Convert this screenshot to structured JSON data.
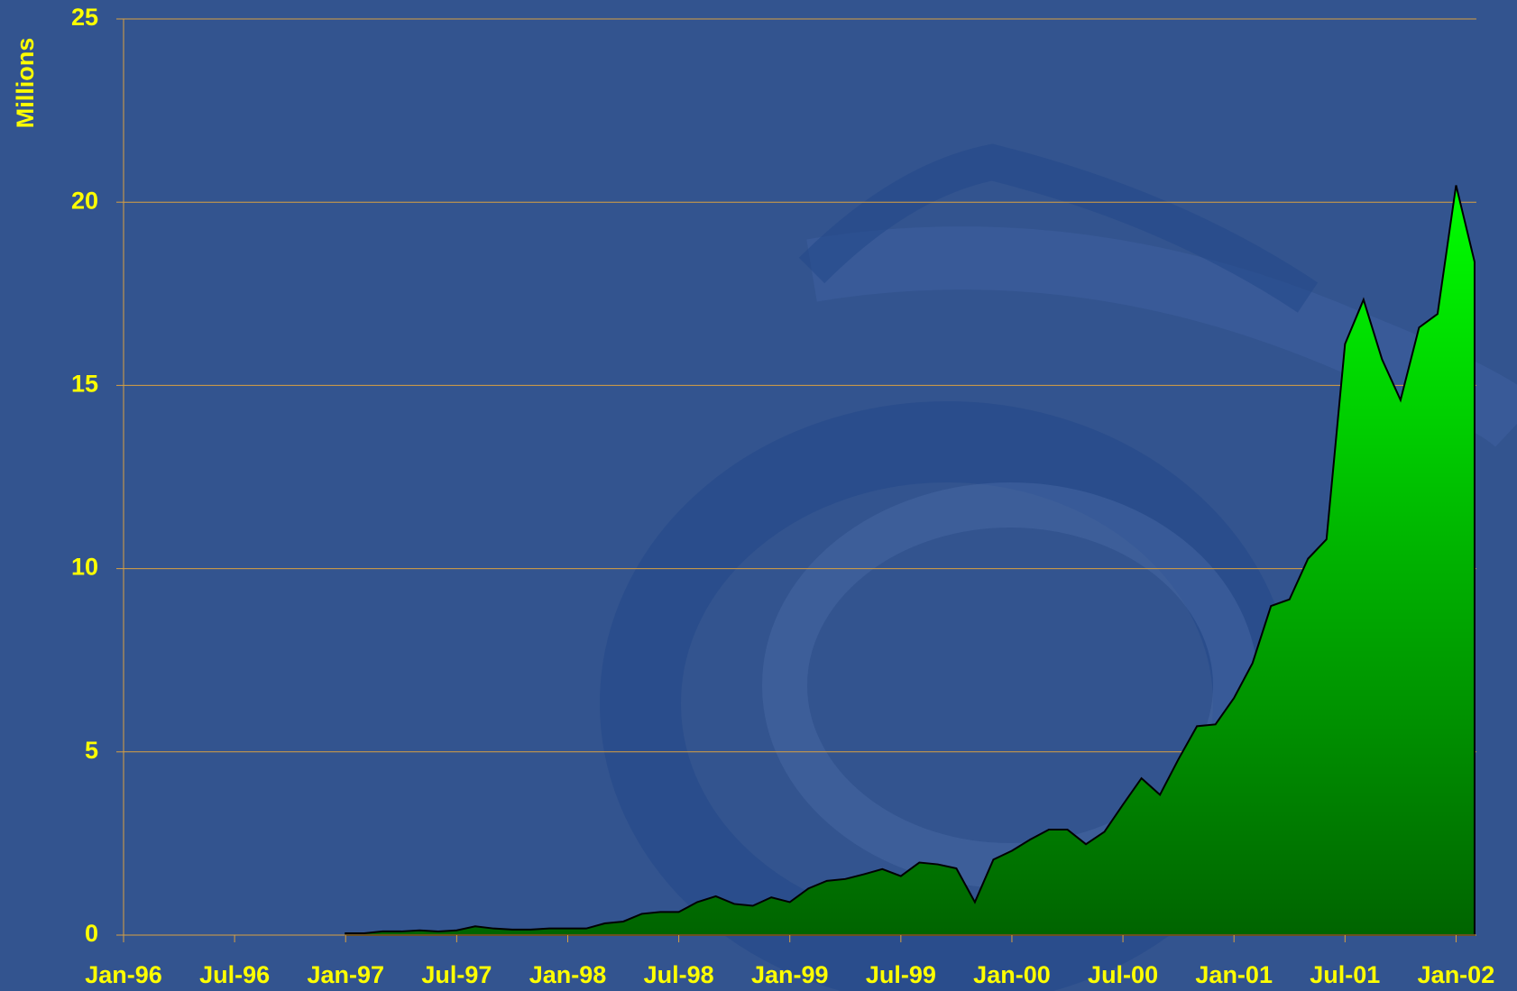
{
  "chart_data": {
    "type": "area",
    "y_label": "Millions",
    "categories": [
      "Jan-96",
      null,
      null,
      null,
      null,
      null,
      "Jul-96",
      null,
      null,
      null,
      null,
      null,
      "Jan-97",
      null,
      null,
      null,
      null,
      null,
      "Jul-97",
      null,
      null,
      null,
      null,
      null,
      "Jan-98",
      null,
      null,
      null,
      null,
      null,
      "Jul-98",
      null,
      null,
      null,
      null,
      null,
      "Jan-99",
      null,
      null,
      null,
      null,
      null,
      "Jul-99",
      null,
      null,
      null,
      null,
      null,
      "Jan-00",
      null,
      null,
      null,
      null,
      null,
      "Jul-00",
      null,
      null,
      null,
      null,
      null,
      "Jan-01",
      null,
      null,
      null,
      null,
      null,
      "Jul-01",
      null,
      null,
      null,
      null,
      null,
      "Jan-02",
      null
    ],
    "values": [
      null,
      null,
      null,
      null,
      null,
      null,
      null,
      null,
      null,
      null,
      null,
      null,
      0.05,
      0.05,
      0.1,
      0.1,
      0.13,
      0.1,
      0.13,
      0.24,
      0.18,
      0.15,
      0.15,
      0.18,
      0.18,
      0.18,
      0.32,
      0.37,
      0.58,
      0.63,
      0.63,
      0.9,
      1.06,
      0.85,
      0.8,
      1.03,
      0.9,
      1.27,
      1.48,
      1.53,
      1.66,
      1.8,
      1.61,
      1.98,
      1.93,
      1.82,
      0.9,
      2.06,
      2.3,
      2.61,
      2.88,
      2.88,
      2.48,
      2.82,
      3.56,
      4.28,
      3.83,
      4.8,
      5.7,
      5.75,
      6.47,
      7.42,
      8.98,
      9.16,
      10.27,
      10.8,
      16.13,
      17.34,
      15.71,
      14.6,
      16.58,
      16.95,
      20.46,
      18.37
    ],
    "color": "#00ff00",
    "ylim": [
      0,
      25
    ],
    "yticks": [
      0,
      5,
      10,
      15,
      20,
      25
    ],
    "grid": true
  }
}
